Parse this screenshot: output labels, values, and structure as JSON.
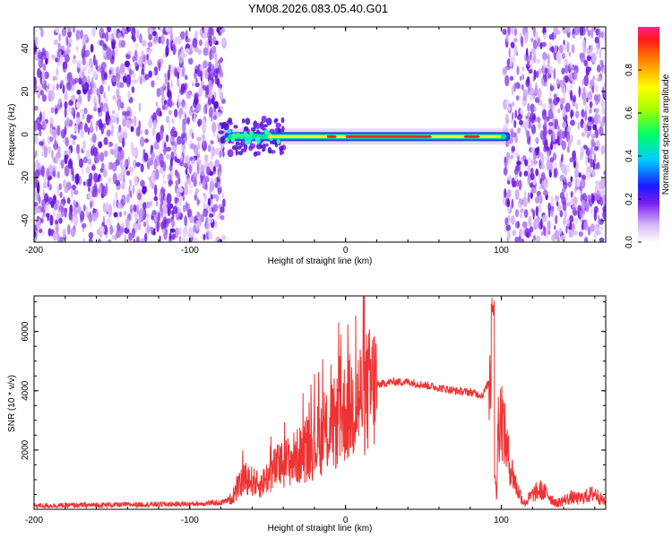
{
  "title": "YM08.2026.083.05.40.G01",
  "chart_data": [
    {
      "type": "heatmap",
      "title": "YM08.2026.083.05.40.G01",
      "xlabel": "Height of straight line (km)",
      "ylabel": "Frequency (Hz)",
      "xlim": [
        -200,
        167
      ],
      "ylim": [
        -50,
        50
      ],
      "xticks": [
        "-200",
        "-100",
        "0",
        "100"
      ],
      "yticks": [
        "-40",
        "-20",
        "0",
        "20",
        "40"
      ],
      "noise_regions": [
        [
          -200,
          -78
        ],
        [
          102,
          167
        ]
      ],
      "signal_band": {
        "x_start": -80,
        "x_end": 108,
        "frequency": -1
      },
      "hot_segments": [
        [
          -12,
          -6
        ],
        [
          0,
          55
        ],
        [
          76,
          86
        ]
      ],
      "colorbar": {
        "label": "Normalized spectral amplitude",
        "range": [
          0,
          1
        ],
        "ticks": [
          "0.0",
          "0.2",
          "0.4",
          "0.6",
          "0.8"
        ]
      }
    },
    {
      "type": "line",
      "xlabel": "Height of straight line (km)",
      "ylabel": "SNR (10 * v/v)",
      "xlim": [
        -200,
        167
      ],
      "ylim": [
        0,
        7200
      ],
      "xticks": [
        "-200",
        "-100",
        "0",
        "100"
      ],
      "yticks": [
        "2000",
        "4000",
        "6000"
      ],
      "series": [
        {
          "name": "SNR",
          "color": "#ee3333",
          "x": [
            -200,
            -150,
            -100,
            -80,
            -72,
            -65,
            -55,
            -45,
            -30,
            -20,
            -10,
            0,
            10,
            20,
            30,
            40,
            50,
            60,
            70,
            80,
            88,
            92,
            94,
            96,
            97,
            98,
            100,
            105,
            110,
            115,
            120,
            125,
            130,
            135,
            140,
            145,
            150,
            155,
            160,
            167
          ],
          "values": [
            120,
            150,
            180,
            220,
            400,
            1100,
            800,
            1400,
            1800,
            2200,
            2700,
            3300,
            3800,
            4200,
            4300,
            4300,
            4200,
            4100,
            4000,
            3950,
            3850,
            4300,
            6200,
            900,
            400,
            3000,
            3200,
            1600,
            700,
            200,
            500,
            650,
            500,
            200,
            300,
            400,
            350,
            450,
            550,
            200
          ]
        }
      ]
    }
  ]
}
